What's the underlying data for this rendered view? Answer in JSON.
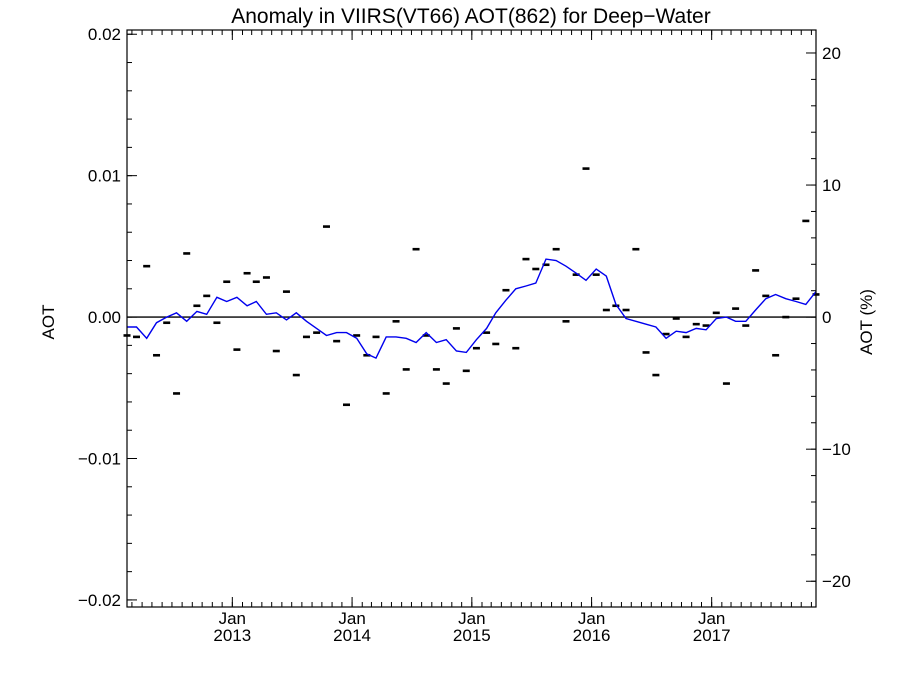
{
  "chart_data": {
    "type": "scatter",
    "title": "Anomaly in VIIRS(VT66) AOT(862) for Deep−Water",
    "ylabel": "AOT",
    "y2label": "AOT (%)",
    "x_range": [
      "2012-02-15",
      "2017-11-15"
    ],
    "ylim": [
      -0.0205,
      0.0203
    ],
    "y2lim": [
      -21.95,
      21.74
    ],
    "y_ticks": [
      {
        "value": -0.02,
        "label": "−0.02"
      },
      {
        "value": -0.01,
        "label": "−0.01"
      },
      {
        "value": 0.0,
        "label": "0.00"
      },
      {
        "value": 0.01,
        "label": "0.01"
      },
      {
        "value": 0.02,
        "label": "0.02"
      }
    ],
    "y2_ticks": [
      {
        "value": -20,
        "label": "−20"
      },
      {
        "value": -10,
        "label": "−10"
      },
      {
        "value": 0,
        "label": "0"
      },
      {
        "value": 10,
        "label": "10"
      },
      {
        "value": 20,
        "label": "20"
      }
    ],
    "x_ticks": [
      {
        "date": "2013-01-01",
        "month": "Jan",
        "year": "2013"
      },
      {
        "date": "2014-01-01",
        "month": "Jan",
        "year": "2014"
      },
      {
        "date": "2015-01-01",
        "month": "Jan",
        "year": "2015"
      },
      {
        "date": "2016-01-01",
        "month": "Jan",
        "year": "2016"
      },
      {
        "date": "2017-01-01",
        "month": "Jan",
        "year": "2017"
      }
    ],
    "reference_line": 0.0,
    "series": [
      {
        "type": "scatter",
        "marker": "dash",
        "color": "#000000",
        "x": [
          "2012-02",
          "2012-03",
          "2012-04",
          "2012-05",
          "2012-06",
          "2012-07",
          "2012-08",
          "2012-09",
          "2012-10",
          "2012-11",
          "2012-12",
          "2013-01",
          "2013-02",
          "2013-03",
          "2013-04",
          "2013-05",
          "2013-06",
          "2013-07",
          "2013-08",
          "2013-09",
          "2013-10",
          "2013-11",
          "2013-12",
          "2014-01",
          "2014-02",
          "2014-03",
          "2014-04",
          "2014-05",
          "2014-06",
          "2014-07",
          "2014-08",
          "2014-09",
          "2014-10",
          "2014-11",
          "2014-12",
          "2015-01",
          "2015-02",
          "2015-03",
          "2015-04",
          "2015-05",
          "2015-06",
          "2015-07",
          "2015-08",
          "2015-09",
          "2015-10",
          "2015-11",
          "2015-12",
          "2016-01",
          "2016-02",
          "2016-03",
          "2016-04",
          "2016-05",
          "2016-06",
          "2016-07",
          "2016-08",
          "2016-09",
          "2016-10",
          "2016-11",
          "2016-12",
          "2017-01",
          "2017-02",
          "2017-03",
          "2017-04",
          "2017-05",
          "2017-06",
          "2017-07",
          "2017-08",
          "2017-09",
          "2017-10",
          "2017-11"
        ],
        "y": [
          -0.0013,
          -0.0014,
          0.0036,
          -0.0027,
          -0.0004,
          -0.0054,
          0.0045,
          0.0008,
          0.0015,
          -0.0004,
          0.0025,
          -0.0023,
          0.0031,
          0.0025,
          0.0028,
          -0.0024,
          0.0018,
          -0.0041,
          -0.0014,
          -0.0011,
          0.0064,
          -0.0017,
          -0.0062,
          -0.0013,
          -0.0027,
          -0.0014,
          -0.0054,
          -0.0003,
          -0.0037,
          0.0048,
          -0.0013,
          -0.0037,
          -0.0047,
          -0.0008,
          -0.0038,
          -0.0022,
          -0.0011,
          -0.0019,
          0.0019,
          -0.0022,
          0.0041,
          0.0034,
          0.0037,
          0.0048,
          -0.0003,
          0.003,
          0.0105,
          0.003,
          0.0005,
          0.0008,
          0.0005,
          0.0048,
          -0.0025,
          -0.0041,
          -0.0012,
          -0.0001,
          -0.0014,
          -0.0005,
          -0.0006,
          0.0003,
          -0.0047,
          0.0006,
          -0.0006,
          0.0033,
          0.0015,
          -0.0027,
          0.0,
          0.0013,
          0.0068,
          0.0016
        ]
      },
      {
        "type": "line",
        "color": "#0000ee",
        "x": [
          "2012-02",
          "2012-03",
          "2012-04",
          "2012-05",
          "2012-06",
          "2012-07",
          "2012-08",
          "2012-09",
          "2012-10",
          "2012-11",
          "2012-12",
          "2013-01",
          "2013-02",
          "2013-03",
          "2013-04",
          "2013-05",
          "2013-06",
          "2013-07",
          "2013-08",
          "2013-09",
          "2013-10",
          "2013-11",
          "2013-12",
          "2014-01",
          "2014-02",
          "2014-03",
          "2014-04",
          "2014-05",
          "2014-06",
          "2014-07",
          "2014-08",
          "2014-09",
          "2014-10",
          "2014-11",
          "2014-12",
          "2015-01",
          "2015-02",
          "2015-03",
          "2015-04",
          "2015-05",
          "2015-06",
          "2015-07",
          "2015-08",
          "2015-09",
          "2015-10",
          "2015-11",
          "2015-12",
          "2016-01",
          "2016-02",
          "2016-03",
          "2016-04",
          "2016-05",
          "2016-06",
          "2016-07",
          "2016-08",
          "2016-09",
          "2016-10",
          "2016-11",
          "2016-12",
          "2017-01",
          "2017-02",
          "2017-03",
          "2017-04",
          "2017-05",
          "2017-06",
          "2017-07",
          "2017-08",
          "2017-09",
          "2017-10",
          "2017-11"
        ],
        "y": [
          -0.0007,
          -0.0007,
          -0.0015,
          -0.0004,
          0.0,
          0.0003,
          -0.0003,
          0.0004,
          0.0002,
          0.0014,
          0.0011,
          0.0014,
          0.0008,
          0.0011,
          0.0002,
          0.0003,
          -0.0002,
          0.0003,
          -0.0003,
          -0.0008,
          -0.0013,
          -0.0011,
          -0.0011,
          -0.0015,
          -0.0026,
          -0.0029,
          -0.0014,
          -0.0014,
          -0.0015,
          -0.0018,
          -0.0011,
          -0.0018,
          -0.0016,
          -0.0024,
          -0.0025,
          -0.0016,
          -0.0008,
          0.0003,
          0.0012,
          0.002,
          0.0022,
          0.0024,
          0.0041,
          0.004,
          0.0036,
          0.0031,
          0.0026,
          0.0034,
          0.0029,
          0.0009,
          -0.0001,
          -0.0003,
          -0.0005,
          -0.0007,
          -0.0015,
          -0.001,
          -0.0011,
          -0.0008,
          -0.0009,
          -0.0001,
          0.0,
          -0.0003,
          -0.0003,
          0.0005,
          0.0013,
          0.0016,
          0.0013,
          0.0011,
          0.0009,
          0.0018
        ]
      }
    ]
  }
}
